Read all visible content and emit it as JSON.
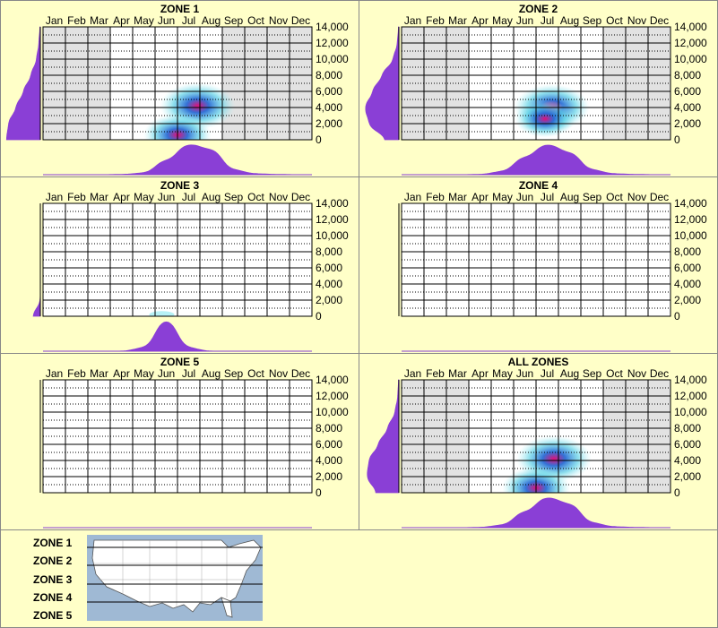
{
  "months": [
    "Jan",
    "Feb",
    "Mar",
    "Apr",
    "May",
    "Jun",
    "Jul",
    "Aug",
    "Sep",
    "Oct",
    "Nov",
    "Dec"
  ],
  "y_ticks": [
    "0",
    "2,000",
    "4,000",
    "6,000",
    "8,000",
    "10,000",
    "12,000",
    "14,000"
  ],
  "colors": {
    "background": "#ffffc8",
    "density_fill": "#8a3fd6",
    "grey_month_fill": "#e2e2e2",
    "grid": "#000000",
    "heat_low": "#aef0f4",
    "heat_mid": "#2a6ad4",
    "heat_high": "#e0107a"
  },
  "chart_data": [
    {
      "type": "heatmap",
      "title": "ZONE 1",
      "x_categories": [
        "Jan",
        "Feb",
        "Mar",
        "Apr",
        "May",
        "Jun",
        "Jul",
        "Aug",
        "Sep",
        "Oct",
        "Nov",
        "Dec"
      ],
      "ylim": [
        0,
        14000
      ],
      "active_months": [
        4,
        8
      ],
      "hot_spots": [
        {
          "month": 7.4,
          "elev": 4200,
          "intensity": 1.0
        },
        {
          "month": 6.5,
          "elev": 600,
          "intensity": 0.9
        }
      ],
      "month_density": [
        0,
        0,
        0,
        0.01,
        0.05,
        0.45,
        0.95,
        0.8,
        0.15,
        0.03,
        0.01,
        0
      ],
      "elev_density": [
        0.9,
        0.85,
        0.65,
        0.45,
        0.25,
        0.1,
        0.04,
        0.01
      ]
    },
    {
      "type": "heatmap",
      "title": "ZONE 2",
      "x_categories": [
        "Jan",
        "Feb",
        "Mar",
        "Apr",
        "May",
        "Jun",
        "Jul",
        "Aug",
        "Sep",
        "Oct",
        "Nov",
        "Dec"
      ],
      "ylim": [
        0,
        14000
      ],
      "active_months": [
        4,
        9
      ],
      "hot_spots": [
        {
          "month": 7.2,
          "elev": 4000,
          "intensity": 1.0
        },
        {
          "month": 6.9,
          "elev": 2600,
          "intensity": 0.8
        }
      ],
      "month_density": [
        0,
        0,
        0,
        0.01,
        0.1,
        0.55,
        0.95,
        0.7,
        0.15,
        0.03,
        0.01,
        0
      ],
      "elev_density": [
        0.35,
        0.8,
        0.9,
        0.7,
        0.45,
        0.15,
        0.04,
        0.01
      ]
    },
    {
      "type": "heatmap",
      "title": "ZONE 3",
      "x_categories": [
        "Jan",
        "Feb",
        "Mar",
        "Apr",
        "May",
        "Jun",
        "Jul",
        "Aug",
        "Sep",
        "Oct",
        "Nov",
        "Dec"
      ],
      "ylim": [
        0,
        14000
      ],
      "active_months": [],
      "hot_spots": [
        {
          "month": 5.8,
          "elev": 200,
          "intensity": 0.15
        }
      ],
      "month_density": [
        0,
        0,
        0,
        0,
        0.1,
        1.0,
        0.1,
        0,
        0,
        0,
        0,
        0
      ],
      "elev_density": [
        0.2,
        0,
        0,
        0,
        0,
        0,
        0,
        0
      ]
    },
    {
      "type": "heatmap",
      "title": "ZONE 4",
      "x_categories": [
        "Jan",
        "Feb",
        "Mar",
        "Apr",
        "May",
        "Jun",
        "Jul",
        "Aug",
        "Sep",
        "Oct",
        "Nov",
        "Dec"
      ],
      "ylim": [
        0,
        14000
      ],
      "active_months": [],
      "hot_spots": [],
      "month_density": [
        0,
        0,
        0,
        0,
        0,
        0,
        0,
        0,
        0,
        0,
        0,
        0
      ],
      "elev_density": [
        0,
        0,
        0,
        0,
        0,
        0,
        0,
        0
      ]
    },
    {
      "type": "heatmap",
      "title": "ZONE 5",
      "x_categories": [
        "Jan",
        "Feb",
        "Mar",
        "Apr",
        "May",
        "Jun",
        "Jul",
        "Aug",
        "Sep",
        "Oct",
        "Nov",
        "Dec"
      ],
      "ylim": [
        0,
        14000
      ],
      "active_months": [],
      "hot_spots": [],
      "month_density": [
        0,
        0,
        0,
        0,
        0,
        0,
        0,
        0,
        0,
        0,
        0,
        0
      ],
      "elev_density": [
        0,
        0,
        0,
        0,
        0,
        0,
        0,
        0
      ]
    },
    {
      "type": "heatmap",
      "title": "ALL ZONES",
      "x_categories": [
        "Jan",
        "Feb",
        "Mar",
        "Apr",
        "May",
        "Jun",
        "Jul",
        "Aug",
        "Sep",
        "Oct",
        "Nov",
        "Dec"
      ],
      "ylim": [
        0,
        14000
      ],
      "active_months": [
        4,
        9
      ],
      "hot_spots": [
        {
          "month": 7.3,
          "elev": 4200,
          "intensity": 1.0
        },
        {
          "month": 6.5,
          "elev": 600,
          "intensity": 0.9
        }
      ],
      "month_density": [
        0,
        0,
        0,
        0.01,
        0.08,
        0.5,
        0.95,
        0.75,
        0.15,
        0.03,
        0.01,
        0
      ],
      "elev_density": [
        0.6,
        0.85,
        0.8,
        0.55,
        0.3,
        0.1,
        0.03,
        0.01
      ]
    }
  ],
  "legend": {
    "zones": [
      "ZONE 1",
      "ZONE 2",
      "ZONE 3",
      "ZONE 4",
      "ZONE 5"
    ],
    "map_image": "us-map-with-zone-bands"
  }
}
